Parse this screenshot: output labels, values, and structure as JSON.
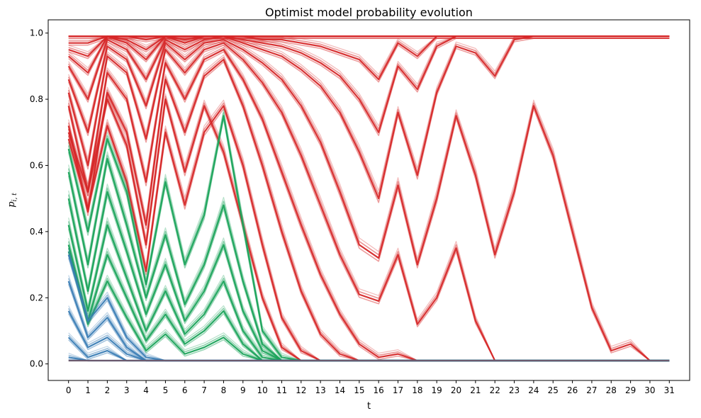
{
  "chart_data": {
    "type": "line",
    "title": "Optimist model probability evolution",
    "xlabel": "t",
    "ylabel": "p_{i,t}",
    "ylabel_main": "p",
    "ylabel_sub": "i, t",
    "xlim": [
      -1.05,
      32.05
    ],
    "ylim": [
      -0.05,
      1.04
    ],
    "x_ticks": [
      0,
      1,
      2,
      3,
      4,
      5,
      6,
      7,
      8,
      9,
      10,
      11,
      12,
      13,
      14,
      15,
      16,
      17,
      18,
      19,
      20,
      21,
      22,
      23,
      24,
      25,
      26,
      27,
      28,
      29,
      30,
      31
    ],
    "y_ticks": [
      0.0,
      0.2,
      0.4,
      0.6,
      0.8,
      1.0
    ],
    "y_tick_labels": [
      "0.0",
      "0.2",
      "0.4",
      "0.6",
      "0.8",
      "1.0"
    ],
    "legend": "none",
    "grid": false,
    "colors": {
      "red": "#d62728",
      "green": "#1aa35a",
      "blue": "#3a7db5",
      "baseline": "#6b5a6e"
    },
    "groups": [
      {
        "color": "#d62728",
        "series": [
          {
            "y": [
              0.99,
              0.99,
              0.99,
              0.99,
              0.99,
              0.99,
              0.99,
              0.99,
              0.99,
              0.99,
              0.99,
              0.99,
              0.99,
              0.99,
              0.99,
              0.99,
              0.99,
              0.99,
              0.99,
              0.99,
              0.99,
              0.99,
              0.99,
              0.99,
              0.99,
              0.99,
              0.99,
              0.99,
              0.99,
              0.99,
              0.99,
              0.99
            ]
          },
          {
            "y": [
              0.97,
              0.97,
              0.99,
              0.99,
              0.98,
              0.99,
              0.99,
              0.99,
              0.99,
              0.99,
              0.99,
              0.99,
              0.99,
              0.99,
              0.99,
              0.99,
              0.99,
              0.99,
              0.99,
              0.99,
              0.99,
              0.99,
              0.99,
              0.99,
              0.99,
              0.99,
              0.99,
              0.99,
              0.99,
              0.99,
              0.99,
              0.99
            ]
          },
          {
            "y": [
              0.95,
              0.93,
              0.99,
              0.98,
              0.95,
              0.99,
              0.98,
              0.99,
              0.99,
              0.99,
              0.98,
              0.98,
              0.97,
              0.96,
              0.94,
              0.92,
              0.86,
              0.97,
              0.93,
              0.99,
              0.99,
              0.99,
              0.99,
              0.99,
              0.99,
              0.99,
              0.99,
              0.99,
              0.99,
              0.99,
              0.99,
              0.99
            ]
          },
          {
            "y": [
              0.93,
              0.88,
              0.99,
              0.97,
              0.92,
              0.99,
              0.97,
              0.99,
              0.99,
              0.98,
              0.97,
              0.96,
              0.94,
              0.91,
              0.87,
              0.8,
              0.7,
              0.9,
              0.83,
              0.96,
              0.99,
              0.99,
              0.99,
              0.99,
              0.99,
              0.99,
              0.99,
              0.99,
              0.99,
              0.99,
              0.99,
              0.99
            ]
          },
          {
            "y": [
              0.9,
              0.8,
              0.98,
              0.95,
              0.86,
              0.98,
              0.95,
              0.98,
              0.99,
              0.97,
              0.95,
              0.93,
              0.89,
              0.84,
              0.76,
              0.64,
              0.5,
              0.76,
              0.57,
              0.82,
              0.96,
              0.94,
              0.87,
              0.98,
              0.99,
              0.99,
              0.99,
              0.99,
              0.99,
              0.99,
              0.99,
              0.99
            ]
          },
          {
            "y": [
              0.86,
              0.7,
              0.96,
              0.92,
              0.78,
              0.97,
              0.92,
              0.97,
              0.98,
              0.95,
              0.91,
              0.86,
              0.78,
              0.67,
              0.52,
              0.36,
              0.32,
              0.54,
              0.3,
              0.5,
              0.75,
              0.57,
              0.33,
              0.52,
              0.78,
              0.63,
              0.4,
              0.17,
              0.04,
              0.06,
              0.01,
              0.01
            ]
          },
          {
            "y": [
              0.82,
              0.6,
              0.93,
              0.88,
              0.68,
              0.95,
              0.88,
              0.95,
              0.97,
              0.92,
              0.85,
              0.76,
              0.63,
              0.48,
              0.33,
              0.21,
              0.19,
              0.33,
              0.12,
              0.2,
              0.35,
              0.13,
              0.01,
              0.01,
              0.01,
              0.01,
              0.01,
              0.01,
              0.01,
              0.01,
              0.01,
              0.01
            ]
          },
          {
            "y": [
              0.78,
              0.52,
              0.88,
              0.8,
              0.55,
              0.91,
              0.8,
              0.92,
              0.95,
              0.86,
              0.74,
              0.58,
              0.42,
              0.27,
              0.15,
              0.06,
              0.02,
              0.03,
              0.01,
              0.01,
              0.01,
              0.01,
              0.01,
              0.01,
              0.01,
              0.01,
              0.01,
              0.01,
              0.01,
              0.01,
              0.01,
              0.01
            ]
          },
          {
            "y": [
              0.72,
              0.46,
              0.82,
              0.7,
              0.42,
              0.86,
              0.7,
              0.87,
              0.92,
              0.78,
              0.6,
              0.4,
              0.22,
              0.09,
              0.03,
              0.01,
              0.01,
              0.01,
              0.01,
              0.01,
              0.01,
              0.01,
              0.01,
              0.01,
              0.01,
              0.01,
              0.01,
              0.01,
              0.01,
              0.01,
              0.01,
              0.01
            ]
          },
          {
            "y": [
              0.68,
              0.47,
              0.72,
              0.55,
              0.28,
              0.7,
              0.48,
              0.7,
              0.78,
              0.6,
              0.36,
              0.14,
              0.04,
              0.01,
              0.01,
              0.01,
              0.01,
              0.01,
              0.01,
              0.01,
              0.01,
              0.01,
              0.01,
              0.01,
              0.01,
              0.01,
              0.01,
              0.01,
              0.01,
              0.01,
              0.01,
              0.01
            ]
          },
          {
            "y": [
              0.7,
              0.52,
              0.8,
              0.66,
              0.36,
              0.8,
              0.58,
              0.78,
              0.64,
              0.42,
              0.2,
              0.05,
              0.01,
              0.01,
              0.01,
              0.01,
              0.01,
              0.01,
              0.01,
              0.01,
              0.01,
              0.01,
              0.01,
              0.01,
              0.01,
              0.01,
              0.01,
              0.01,
              0.01,
              0.01,
              0.01,
              0.01
            ]
          }
        ]
      },
      {
        "color": "#1aa35a",
        "series": [
          {
            "y": [
              0.65,
              0.4,
              0.68,
              0.52,
              0.24,
              0.55,
              0.3,
              0.45,
              0.75,
              0.42,
              0.1,
              0.02,
              0.01,
              0.01,
              0.01,
              0.01,
              0.01,
              0.01,
              0.01,
              0.01,
              0.01,
              0.01,
              0.01,
              0.01,
              0.01,
              0.01,
              0.01,
              0.01,
              0.01,
              0.01,
              0.01,
              0.01
            ]
          },
          {
            "y": [
              0.58,
              0.3,
              0.62,
              0.42,
              0.2,
              0.39,
              0.18,
              0.3,
              0.48,
              0.25,
              0.06,
              0.01,
              0.01,
              0.01,
              0.01,
              0.01,
              0.01,
              0.01,
              0.01,
              0.01,
              0.01,
              0.01,
              0.01,
              0.01,
              0.01,
              0.01,
              0.01,
              0.01,
              0.01,
              0.01,
              0.01,
              0.01
            ]
          },
          {
            "y": [
              0.5,
              0.22,
              0.52,
              0.34,
              0.15,
              0.3,
              0.13,
              0.22,
              0.36,
              0.16,
              0.04,
              0.01,
              0.01,
              0.01,
              0.01,
              0.01,
              0.01,
              0.01,
              0.01,
              0.01,
              0.01,
              0.01,
              0.01,
              0.01,
              0.01,
              0.01,
              0.01,
              0.01,
              0.01,
              0.01,
              0.01,
              0.01
            ]
          },
          {
            "y": [
              0.42,
              0.16,
              0.42,
              0.26,
              0.1,
              0.22,
              0.09,
              0.15,
              0.25,
              0.1,
              0.02,
              0.01,
              0.01,
              0.01,
              0.01,
              0.01,
              0.01,
              0.01,
              0.01,
              0.01,
              0.01,
              0.01,
              0.01,
              0.01,
              0.01,
              0.01,
              0.01,
              0.01,
              0.01,
              0.01,
              0.01,
              0.01
            ]
          },
          {
            "y": [
              0.36,
              0.13,
              0.33,
              0.2,
              0.07,
              0.15,
              0.06,
              0.1,
              0.16,
              0.06,
              0.01,
              0.01,
              0.01,
              0.01,
              0.01,
              0.01,
              0.01,
              0.01,
              0.01,
              0.01,
              0.01,
              0.01,
              0.01,
              0.01,
              0.01,
              0.01,
              0.01,
              0.01,
              0.01,
              0.01,
              0.01,
              0.01
            ]
          },
          {
            "y": [
              0.34,
              0.12,
              0.25,
              0.14,
              0.04,
              0.09,
              0.03,
              0.05,
              0.08,
              0.03,
              0.01,
              0.01,
              0.01,
              0.01,
              0.01,
              0.01,
              0.01,
              0.01,
              0.01,
              0.01,
              0.01,
              0.01,
              0.01,
              0.01,
              0.01,
              0.01,
              0.01,
              0.01,
              0.01,
              0.01,
              0.01,
              0.01
            ]
          }
        ]
      },
      {
        "color": "#3a7db5",
        "series": [
          {
            "y": [
              0.33,
              0.13,
              0.2,
              0.08,
              0.02,
              0.01,
              0.01,
              0.01,
              0.01,
              0.01,
              0.01,
              0.01,
              0.01,
              0.01,
              0.01,
              0.01,
              0.01,
              0.01,
              0.01,
              0.01,
              0.01,
              0.01,
              0.01,
              0.01,
              0.01,
              0.01,
              0.01,
              0.01,
              0.01,
              0.01,
              0.01,
              0.01
            ]
          },
          {
            "y": [
              0.25,
              0.08,
              0.14,
              0.05,
              0.01,
              0.01,
              0.01,
              0.01,
              0.01,
              0.01,
              0.01,
              0.01,
              0.01,
              0.01,
              0.01,
              0.01,
              0.01,
              0.01,
              0.01,
              0.01,
              0.01,
              0.01,
              0.01,
              0.01,
              0.01,
              0.01,
              0.01,
              0.01,
              0.01,
              0.01,
              0.01,
              0.01
            ]
          },
          {
            "y": [
              0.16,
              0.05,
              0.08,
              0.03,
              0.01,
              0.01,
              0.01,
              0.01,
              0.01,
              0.01,
              0.01,
              0.01,
              0.01,
              0.01,
              0.01,
              0.01,
              0.01,
              0.01,
              0.01,
              0.01,
              0.01,
              0.01,
              0.01,
              0.01,
              0.01,
              0.01,
              0.01,
              0.01,
              0.01,
              0.01,
              0.01,
              0.01
            ]
          },
          {
            "y": [
              0.08,
              0.02,
              0.04,
              0.01,
              0.01,
              0.01,
              0.01,
              0.01,
              0.01,
              0.01,
              0.01,
              0.01,
              0.01,
              0.01,
              0.01,
              0.01,
              0.01,
              0.01,
              0.01,
              0.01,
              0.01,
              0.01,
              0.01,
              0.01,
              0.01,
              0.01,
              0.01,
              0.01,
              0.01,
              0.01,
              0.01,
              0.01
            ]
          },
          {
            "y": [
              0.02,
              0.01,
              0.01,
              0.01,
              0.01,
              0.01,
              0.01,
              0.01,
              0.01,
              0.01,
              0.01,
              0.01,
              0.01,
              0.01,
              0.01,
              0.01,
              0.01,
              0.01,
              0.01,
              0.01,
              0.01,
              0.01,
              0.01,
              0.01,
              0.01,
              0.01,
              0.01,
              0.01,
              0.01,
              0.01,
              0.01,
              0.01
            ]
          }
        ]
      }
    ]
  }
}
